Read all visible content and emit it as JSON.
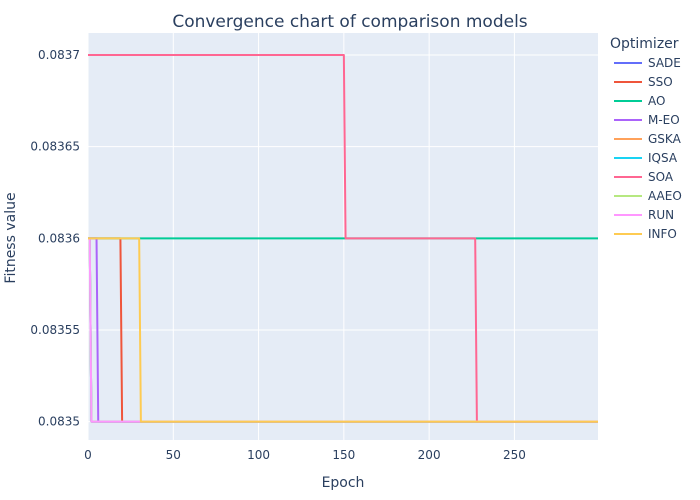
{
  "chart_data": {
    "type": "line",
    "title": "Convergence chart of comparison models",
    "xlabel": "Epoch",
    "ylabel": "Fitness value",
    "xlim": [
      0,
      299
    ],
    "ylim": [
      0.08349,
      0.083712
    ],
    "xticks": [
      0,
      50,
      100,
      150,
      200,
      250
    ],
    "xtick_labels": [
      "0",
      "50",
      "100",
      "150",
      "200",
      "250"
    ],
    "yticks": [
      0.0835,
      0.08355,
      0.0836,
      0.08365,
      0.0837
    ],
    "ytick_labels": [
      "0.0835",
      "0.08355",
      "0.0836",
      "0.08365",
      "0.0837"
    ],
    "grid": true,
    "plot_bg": "#E5ECF6",
    "legend_title": "Optimizer",
    "legend_position": "right",
    "series": [
      {
        "name": "SADE",
        "color": "#636EFA",
        "points": [
          [
            0,
            0.0836
          ],
          [
            1,
            0.0836
          ],
          [
            2,
            0.0835
          ],
          [
            299,
            0.0835
          ]
        ]
      },
      {
        "name": "SSO",
        "color": "#EF553B",
        "points": [
          [
            0,
            0.0836
          ],
          [
            19,
            0.0836
          ],
          [
            20,
            0.0835
          ],
          [
            299,
            0.0835
          ]
        ]
      },
      {
        "name": "AO",
        "color": "#00CC96",
        "points": [
          [
            0,
            0.0836
          ],
          [
            299,
            0.0836
          ]
        ]
      },
      {
        "name": "M-EO",
        "color": "#AB63FA",
        "points": [
          [
            0,
            0.0836
          ],
          [
            5,
            0.0836
          ],
          [
            6,
            0.0835
          ],
          [
            299,
            0.0835
          ]
        ]
      },
      {
        "name": "GSKA",
        "color": "#FFA15A",
        "points": [
          [
            0,
            0.0836
          ],
          [
            1,
            0.0836
          ],
          [
            2,
            0.0835
          ],
          [
            299,
            0.0835
          ]
        ]
      },
      {
        "name": "IQSA",
        "color": "#19D3F3",
        "points": [
          [
            0,
            0.0836
          ],
          [
            1,
            0.0836
          ],
          [
            2,
            0.0835
          ],
          [
            299,
            0.0835
          ]
        ]
      },
      {
        "name": "SOA",
        "color": "#FF6692",
        "points": [
          [
            0,
            0.0837
          ],
          [
            150,
            0.0837
          ],
          [
            151,
            0.0836
          ],
          [
            227,
            0.0836
          ],
          [
            228,
            0.0835
          ],
          [
            299,
            0.0835
          ]
        ]
      },
      {
        "name": "AAEO",
        "color": "#B6E880",
        "points": [
          [
            0,
            0.0836
          ],
          [
            1,
            0.0836
          ],
          [
            2,
            0.0835
          ],
          [
            299,
            0.0835
          ]
        ]
      },
      {
        "name": "RUN",
        "color": "#FF97FF",
        "points": [
          [
            0,
            0.0836
          ],
          [
            1,
            0.0836
          ],
          [
            2,
            0.0835
          ],
          [
            299,
            0.0835
          ]
        ]
      },
      {
        "name": "INFO",
        "color": "#FECB52",
        "points": [
          [
            0,
            0.0836
          ],
          [
            30,
            0.0836
          ],
          [
            31,
            0.0835
          ],
          [
            299,
            0.0835
          ]
        ]
      }
    ]
  }
}
